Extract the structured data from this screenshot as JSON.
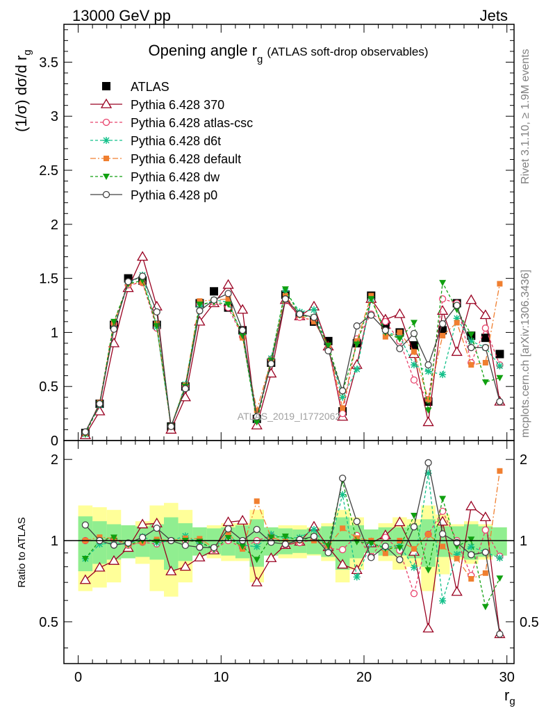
{
  "header": {
    "left": "13000 GeV pp",
    "right": "Jets"
  },
  "side_notes": {
    "rivet": "Rivet 3.1.10, ≥ 1.9M events",
    "mcplots": "mcplots.cern.ch [arXiv:1306.3436]"
  },
  "watermark": "ATLAS_2019_I1772062",
  "chart_data": [
    {
      "type": "line",
      "title_main": "Opening angle r",
      "title_sub": "g",
      "title_extra": "(ATLAS soft-drop observables)",
      "ylabel_main": "(1/σ) dσ/d r",
      "ylabel_sub": "g",
      "xlabel_main": "r",
      "xlabel_sub": "g",
      "xlim": [
        -1,
        30.5
      ],
      "ylim": [
        0,
        3.85
      ],
      "yticks": [
        "0",
        "0.5",
        "1",
        "1.5",
        "2",
        "2.5",
        "3",
        "3.5"
      ],
      "xticks": [
        "0",
        "10",
        "20",
        "30"
      ],
      "legend_position": "top-left",
      "x": [
        0.5,
        1.5,
        2.5,
        3.5,
        4.5,
        5.5,
        6.5,
        7.5,
        8.5,
        9.5,
        10.5,
        11.5,
        12.5,
        13.5,
        14.5,
        15.5,
        16.5,
        17.5,
        18.5,
        19.5,
        20.5,
        21.5,
        22.5,
        23.5,
        24.5,
        25.5,
        26.5,
        27.5,
        28.5,
        29.5
      ],
      "series": [
        {
          "name": "ATLAS",
          "color": "#000000",
          "marker": "square",
          "dash": "",
          "values": [
            0.07,
            0.34,
            1.07,
            1.5,
            1.48,
            1.07,
            0.13,
            0.5,
            1.27,
            1.38,
            1.23,
            1.02,
            0.2,
            0.72,
            1.35,
            1.16,
            1.1,
            0.92,
            0.27,
            0.9,
            1.34,
            1.07,
            1.0,
            0.88,
            0.36,
            1.02,
            1.27,
            0.97,
            0.95,
            0.8
          ]
        },
        {
          "name": "Pythia 6.428 370",
          "color": "#990020",
          "marker": "triangle",
          "dash": "",
          "values": [
            0.05,
            0.27,
            0.9,
            1.41,
            1.7,
            1.24,
            0.1,
            0.4,
            1.1,
            1.27,
            1.44,
            1.21,
            0.14,
            0.62,
            1.3,
            1.15,
            1.24,
            0.87,
            0.22,
            0.7,
            1.31,
            1.12,
            1.17,
            0.8,
            0.17,
            1.2,
            0.82,
            1.3,
            1.16,
            0.36
          ]
        },
        {
          "name": "Pythia 6.428 atlas-csc",
          "color": "#e8406a",
          "marker": "circle",
          "dash": "4,3",
          "values": [
            0.07,
            0.34,
            1.08,
            1.44,
            1.46,
            1.04,
            0.13,
            0.5,
            1.26,
            1.28,
            1.23,
            0.96,
            0.2,
            0.75,
            1.3,
            1.14,
            1.11,
            0.86,
            0.25,
            0.94,
            1.17,
            1.1,
            0.92,
            0.56,
            0.38,
            1.31,
            1.27,
            0.72,
            1.04,
            0.7
          ]
        },
        {
          "name": "Pythia 6.428 d6t",
          "color": "#13c08a",
          "marker": "star",
          "dash": "4,3",
          "values": [
            0.06,
            0.33,
            1.05,
            1.45,
            1.53,
            1.05,
            0.13,
            0.52,
            1.24,
            1.3,
            1.28,
            0.98,
            0.19,
            0.76,
            1.38,
            1.19,
            1.21,
            0.85,
            0.4,
            0.66,
            1.31,
            1.01,
            0.96,
            0.7,
            0.64,
            0.61,
            1.13,
            0.92,
            0.86,
            0.69
          ]
        },
        {
          "name": "Pythia 6.428 default",
          "color": "#f07f30",
          "marker": "square-small",
          "dash": "8,3,2,3",
          "values": [
            0.07,
            0.35,
            1.09,
            1.45,
            1.46,
            1.08,
            0.13,
            0.51,
            1.29,
            1.3,
            1.31,
            0.95,
            0.28,
            0.74,
            1.34,
            1.16,
            1.1,
            0.88,
            0.3,
            0.92,
            1.34,
            0.96,
            1.0,
            0.82,
            0.38,
            0.97,
            1.09,
            0.7,
            0.72,
            1.45
          ]
        },
        {
          "name": "Pythia 6.428 dw",
          "color": "#10a010",
          "marker": "triangle-down",
          "dash": "4,3",
          "values": [
            0.06,
            0.34,
            1.1,
            1.45,
            1.48,
            1.06,
            0.13,
            0.5,
            1.26,
            1.28,
            1.26,
            0.97,
            0.17,
            0.74,
            1.4,
            1.16,
            1.14,
            0.88,
            0.45,
            0.89,
            1.31,
            1.0,
            0.94,
            1.09,
            0.28,
            1.46,
            1.21,
            0.98,
            0.54,
            0.58
          ]
        },
        {
          "name": "Pythia 6.428 p0",
          "color": "#404040",
          "marker": "circle",
          "dash": "",
          "values": [
            0.08,
            0.34,
            1.03,
            1.47,
            1.52,
            1.19,
            0.13,
            0.48,
            1.2,
            1.3,
            1.36,
            1.02,
            0.22,
            0.71,
            1.31,
            1.17,
            1.14,
            0.83,
            0.46,
            1.06,
            1.16,
            1.02,
            0.85,
            0.99,
            0.7,
            1.08,
            1.25,
            0.86,
            0.86,
            0.36
          ]
        }
      ]
    },
    {
      "type": "line",
      "ylabel": "Ratio to ATLAS",
      "ylim": [
        0.35,
        2.35
      ],
      "yticks": [
        "0.5",
        "1",
        "2"
      ],
      "reference": 1,
      "band_inner": {
        "color": "#90ee90",
        "half_width": [
          0.23,
          0.18,
          0.15,
          0.14,
          0.13,
          0.15,
          0.22,
          0.16,
          0.12,
          0.11,
          0.12,
          0.14,
          0.2,
          0.12,
          0.11,
          0.1,
          0.11,
          0.13,
          0.22,
          0.14,
          0.1,
          0.12,
          0.12,
          0.14,
          0.2,
          0.13,
          0.13,
          0.15,
          0.13,
          0.12
        ]
      },
      "band_outer": {
        "color": "#ffff99",
        "half_width": [
          0.35,
          0.33,
          0.3,
          0.14,
          0.18,
          0.35,
          0.38,
          0.3,
          0.12,
          0.14,
          0.16,
          0.16,
          0.3,
          0.12,
          0.14,
          0.14,
          0.12,
          0.16,
          0.3,
          0.22,
          0.1,
          0.16,
          0.22,
          0.2,
          0.35,
          0.25,
          0.15,
          0.18,
          0.15,
          0.12
        ]
      }
    }
  ]
}
